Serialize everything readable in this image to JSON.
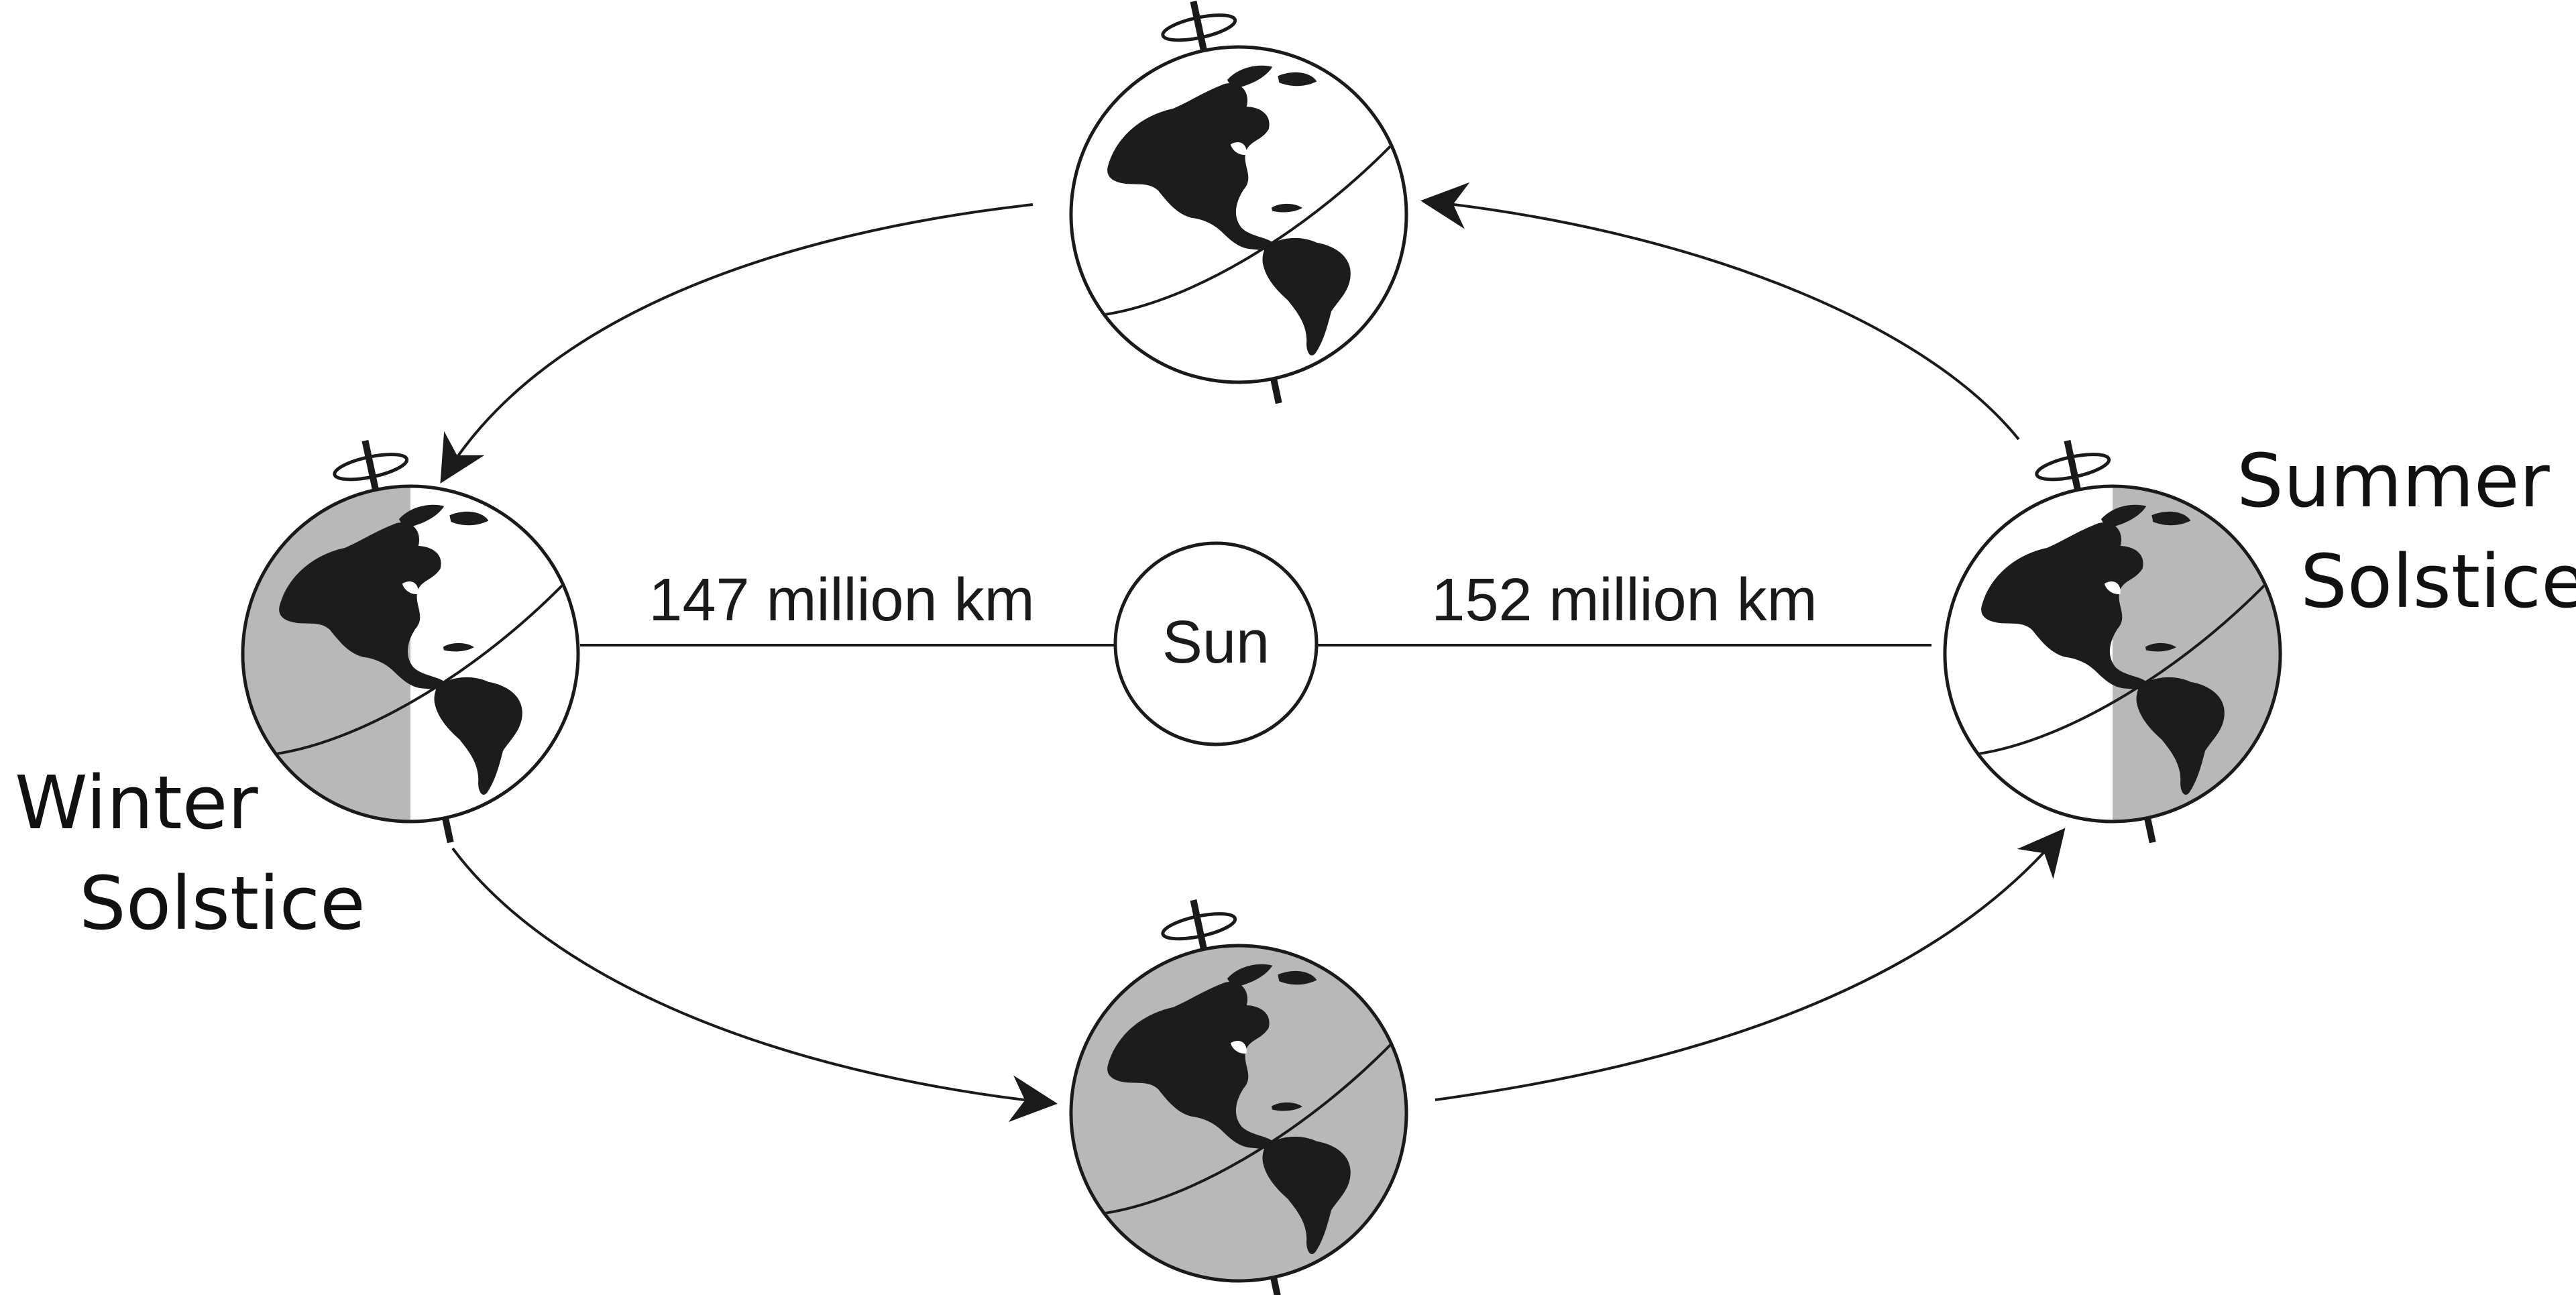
{
  "diagram": {
    "sun": {
      "label": "Sun"
    },
    "distances": {
      "perihelion": "147 million km",
      "aphelion": "152 million km"
    },
    "positions": {
      "winter": {
        "line1": "Winter",
        "line2": "Solstice"
      },
      "summer": {
        "line1": "Summer",
        "line2": "Solstice"
      }
    },
    "colors": {
      "ink": "#1a1a1a",
      "land": "#1c1c1c",
      "night": "#b8b8b8",
      "day": "#ffffff"
    },
    "icons": [
      "rotation-arrow-icon",
      "orbit-arrow-icon",
      "earth-globe-icon",
      "sun-circle-icon"
    ]
  }
}
